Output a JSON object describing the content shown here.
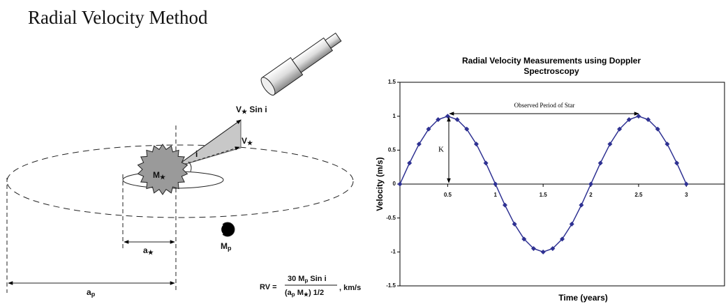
{
  "title": "Radial Velocity Method",
  "diagram": {
    "v_sin_i": {
      "main": "V",
      "sub": "★",
      "rest": " Sin i"
    },
    "v_star": {
      "main": "V",
      "sub": "★"
    },
    "angle": "i",
    "star_mass": {
      "main": "M",
      "sub": "★"
    },
    "star_orbit": {
      "main": "a",
      "sub": "★"
    },
    "planet_mass": {
      "main": "M",
      "sub": "p"
    },
    "planet_orbit": {
      "main": "a",
      "sub": "p"
    },
    "formula": {
      "lhs": "RV =",
      "numerator": [
        "30 M",
        "p",
        " Sin i"
      ],
      "denominator": [
        "(a",
        "p",
        " M",
        "★",
        ") 1/2"
      ],
      "unit": ", km/s"
    }
  },
  "chart_data": {
    "type": "line",
    "title": [
      "Radial Velocity Measurements using Doppler",
      "Spectroscopy"
    ],
    "x_label": "Time (years)",
    "y_label": "Velocity (m/s)",
    "x": [
      0,
      0.1,
      0.2,
      0.3,
      0.4,
      0.5,
      0.6,
      0.7,
      0.8,
      0.9,
      1,
      1.1,
      1.2,
      1.3,
      1.4,
      1.5,
      1.6,
      1.7,
      1.8,
      1.9,
      2,
      2.1,
      2.2,
      2.3,
      2.4,
      2.5,
      2.6,
      2.7,
      2.8,
      2.9,
      3
    ],
    "values": [
      0,
      0.31,
      0.59,
      0.81,
      0.95,
      1,
      0.95,
      0.81,
      0.59,
      0.31,
      0,
      -0.31,
      -0.59,
      -0.81,
      -0.95,
      -1,
      -0.95,
      -0.81,
      -0.59,
      -0.31,
      0,
      0.31,
      0.59,
      0.81,
      0.95,
      1,
      0.95,
      0.81,
      0.59,
      0.31,
      0
    ],
    "color": "#2e3192",
    "xlim": [
      0,
      3.4
    ],
    "ylim": [
      -1.5,
      1.5
    ],
    "xticks": [
      0.5,
      1,
      1.5,
      2,
      2.5,
      3
    ],
    "yticks": [
      -1.5,
      -1,
      -0.5,
      0,
      0.5,
      1,
      1.5
    ],
    "annotations": [
      "Observed Period of Star",
      "K"
    ]
  }
}
